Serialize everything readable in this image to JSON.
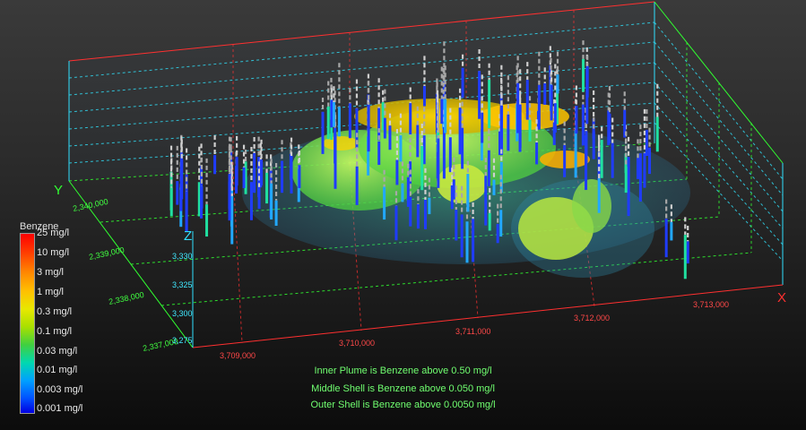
{
  "legend": {
    "title": "Benzene",
    "labels": [
      "25 mg/l",
      "10 mg/l",
      "3 mg/l",
      "1 mg/l",
      "0.3 mg/l",
      "0.1 mg/l",
      "0.03 mg/l",
      "0.01 mg/l",
      "0.003 mg/l",
      "0.001 mg/l"
    ]
  },
  "axes": {
    "x_label": "X",
    "y_label": "Y",
    "z_label": "Z",
    "x_ticks": [
      "3,709,000",
      "3,710,000",
      "3,711,000",
      "3,712,000",
      "3,713,000"
    ],
    "y_ticks": [
      "2,340,000",
      "2,339,000",
      "2,338,000",
      "2,337,000"
    ],
    "z_ticks": [
      "3,330",
      "3,325",
      "3,300",
      "3,275"
    ]
  },
  "captions": [
    "Inner Plume is Benzene above 0.50 mg/l",
    "Middle Shell is Benzene above 0.050 mg/l",
    "Outer Shell is Benzene above 0.0050 mg/l"
  ],
  "colors": {
    "x_axis": "#ff3030",
    "y_axis": "#30ff30",
    "z_axis": "#30e0ff",
    "caption": "#70ff70"
  }
}
